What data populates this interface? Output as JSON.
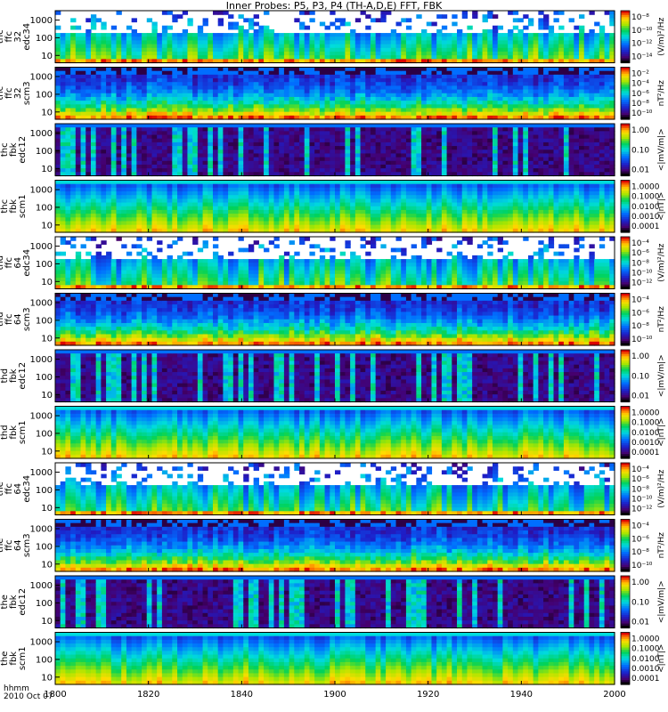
{
  "title": "Inner Probes: P5, P3, P4 (TH-A,D,E) FFT, FBK",
  "footer": {
    "line1": "hhmm",
    "line2": "2010 Oct 07"
  },
  "chart_data": {
    "type": "heatmap",
    "x_ticks": [
      "1800",
      "1820",
      "1840",
      "1900",
      "1920",
      "1940",
      "2000"
    ],
    "panels": [
      {
        "label": [
          "thc",
          "ffc",
          "32",
          "edc34"
        ],
        "y_ticks": [
          "1000",
          "100",
          "10"
        ],
        "cb_ticks": [
          "10⁻⁸",
          "10⁻¹⁰",
          "10⁻¹²",
          "10⁻¹⁴"
        ],
        "units": "(V/m)²/Hz",
        "style": "e",
        "level": 0.42
      },
      {
        "label": [
          "thc",
          "ffc",
          "32",
          "scm3"
        ],
        "y_ticks": [
          "1000",
          "100",
          "10"
        ],
        "cb_ticks": [
          "10⁻²",
          "10⁻⁴",
          "10⁻⁶",
          "10⁻⁸",
          "10⁻¹⁰"
        ],
        "units": "nT²/Hz",
        "style": "s",
        "level": 0.35
      },
      {
        "label": [
          "thc",
          "fbk",
          "edc12"
        ],
        "y_ticks": [
          "1000",
          "100",
          "10"
        ],
        "cb_ticks": [
          "1.00",
          "0.10",
          "0.01"
        ],
        "units": "<|mV/m|>",
        "style": "d",
        "level": 0.15
      },
      {
        "label": [
          "thc",
          "fbk",
          "scm1"
        ],
        "y_ticks": [
          "1000",
          "100",
          "10"
        ],
        "cb_ticks": [
          "1.0000",
          "0.1000",
          "0.0100",
          "0.0010",
          "0.0001"
        ],
        "units": "<|nT|>",
        "style": "b",
        "level": 0.55
      },
      {
        "label": [
          "thd",
          "ffc",
          "64",
          "edc34"
        ],
        "y_ticks": [
          "1000",
          "100",
          "10"
        ],
        "cb_ticks": [
          "10⁻⁴",
          "10⁻⁶",
          "10⁻⁸",
          "10⁻¹⁰",
          "10⁻¹²"
        ],
        "units": "(V/m)²/Hz",
        "style": "e",
        "level": 0.38
      },
      {
        "label": [
          "thd",
          "ffc",
          "64",
          "scm3"
        ],
        "y_ticks": [
          "1000",
          "100",
          "10"
        ],
        "cb_ticks": [
          "10⁻⁴",
          "10⁻⁶",
          "10⁻⁸",
          "10⁻¹⁰"
        ],
        "units": "nT²/Hz",
        "style": "s",
        "level": 0.35
      },
      {
        "label": [
          "thd",
          "fbk",
          "edc12"
        ],
        "y_ticks": [
          "1000",
          "100",
          "10"
        ],
        "cb_ticks": [
          "1.00",
          "0.10",
          "0.01"
        ],
        "units": "<|mV/m|>",
        "style": "d",
        "level": 0.18
      },
      {
        "label": [
          "thd",
          "fbk",
          "scm1"
        ],
        "y_ticks": [
          "1000",
          "100",
          "10"
        ],
        "cb_ticks": [
          "1.0000",
          "0.1000",
          "0.0100",
          "0.0010",
          "0.0001"
        ],
        "units": "<|nT|>",
        "style": "b",
        "level": 0.55
      },
      {
        "label": [
          "the",
          "ffc",
          "64",
          "edc34"
        ],
        "y_ticks": [
          "1000",
          "100",
          "10"
        ],
        "cb_ticks": [
          "10⁻⁴",
          "10⁻⁶",
          "10⁻⁸",
          "10⁻¹⁰",
          "10⁻¹²"
        ],
        "units": "(V/m)²/Hz",
        "style": "e",
        "level": 0.38
      },
      {
        "label": [
          "the",
          "ffc",
          "64",
          "scm3"
        ],
        "y_ticks": [
          "1000",
          "100",
          "10"
        ],
        "cb_ticks": [
          "10⁻⁴",
          "10⁻⁶",
          "10⁻⁸",
          "10⁻¹⁰"
        ],
        "units": "nT²/Hz",
        "style": "s",
        "level": 0.35
      },
      {
        "label": [
          "the",
          "fbk",
          "edc12"
        ],
        "y_ticks": [
          "1000",
          "100",
          "10"
        ],
        "cb_ticks": [
          "1.00",
          "0.10",
          "0.01"
        ],
        "units": "<|mV/m|>",
        "style": "d",
        "level": 0.18
      },
      {
        "label": [
          "the",
          "fbk",
          "scm1"
        ],
        "y_ticks": [
          "1000",
          "100",
          "10"
        ],
        "cb_ticks": [
          "1.0000",
          "0.1000",
          "0.0100",
          "0.0010",
          "0.0001"
        ],
        "units": "<|nT|>",
        "style": "b",
        "level": 0.55
      }
    ],
    "x_tick_first": "1800"
  }
}
